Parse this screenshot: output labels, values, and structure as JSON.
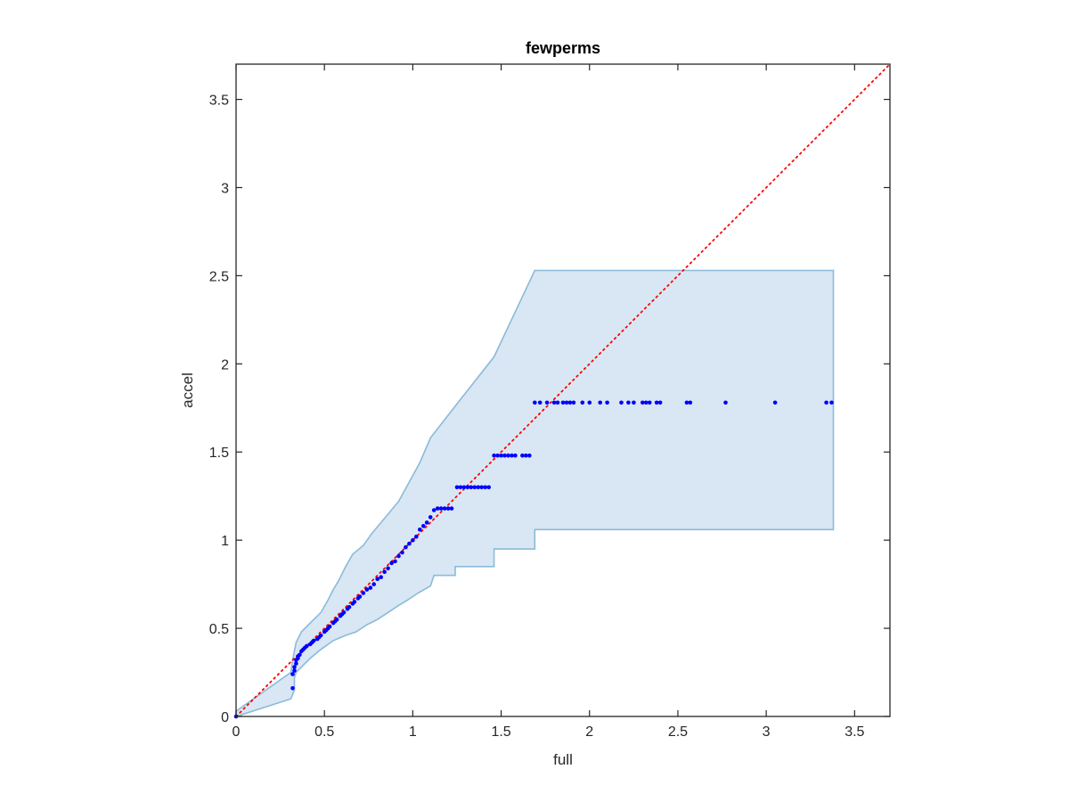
{
  "chart_data": {
    "type": "scatter",
    "title": "fewperms",
    "xlabel": "full",
    "ylabel": "accel",
    "xlim": [
      0,
      3.7
    ],
    "ylim": [
      0,
      3.7
    ],
    "xticks": [
      "0",
      "0.5",
      "1",
      "1.5",
      "2",
      "2.5",
      "3",
      "3.5"
    ],
    "yticks": [
      "0",
      "0.5",
      "1",
      "1.5",
      "2",
      "2.5",
      "3",
      "3.5"
    ],
    "tick_values": [
      0,
      0.5,
      1,
      1.5,
      2,
      2.5,
      3,
      3.5
    ],
    "grid": false,
    "legend": "none",
    "colors": {
      "points": "#0000ff",
      "band_fill": "#d8e7f3",
      "band_edge": "#8bbad9",
      "reference_line": "#ff0000",
      "axes": "#262626"
    },
    "reference_line": {
      "style": "dotted",
      "from": [
        0,
        0
      ],
      "to": [
        3.7,
        3.7
      ]
    },
    "band": {
      "upper": [
        [
          0,
          0.03
        ],
        [
          0.31,
          0.25
        ],
        [
          0.32,
          0.32
        ],
        [
          0.34,
          0.42
        ],
        [
          0.37,
          0.48
        ],
        [
          0.42,
          0.53
        ],
        [
          0.48,
          0.59
        ],
        [
          0.52,
          0.66
        ],
        [
          0.55,
          0.72
        ],
        [
          0.58,
          0.77
        ],
        [
          0.62,
          0.85
        ],
        [
          0.66,
          0.92
        ],
        [
          0.72,
          0.97
        ],
        [
          0.77,
          1.04
        ],
        [
          0.82,
          1.1
        ],
        [
          0.87,
          1.16
        ],
        [
          0.92,
          1.22
        ],
        [
          0.98,
          1.33
        ],
        [
          1.04,
          1.44
        ],
        [
          1.1,
          1.58
        ],
        [
          1.24,
          1.76
        ],
        [
          1.46,
          2.04
        ],
        [
          1.69,
          2.53
        ],
        [
          3.38,
          2.53
        ]
      ],
      "lower": [
        [
          3.38,
          1.06
        ],
        [
          1.69,
          1.06
        ],
        [
          1.69,
          0.95
        ],
        [
          1.46,
          0.95
        ],
        [
          1.46,
          0.85
        ],
        [
          1.24,
          0.85
        ],
        [
          1.24,
          0.8
        ],
        [
          1.12,
          0.8
        ],
        [
          1.1,
          0.74
        ],
        [
          1.03,
          0.7
        ],
        [
          0.97,
          0.66
        ],
        [
          0.92,
          0.63
        ],
        [
          0.86,
          0.59
        ],
        [
          0.8,
          0.55
        ],
        [
          0.74,
          0.52
        ],
        [
          0.68,
          0.48
        ],
        [
          0.62,
          0.46
        ],
        [
          0.55,
          0.43
        ],
        [
          0.48,
          0.38
        ],
        [
          0.42,
          0.33
        ],
        [
          0.38,
          0.29
        ],
        [
          0.34,
          0.25
        ],
        [
          0.33,
          0.22
        ],
        [
          0.33,
          0.15
        ],
        [
          0.31,
          0.1
        ],
        [
          0,
          0
        ]
      ]
    },
    "series": [
      {
        "x": [
          0,
          0.32,
          0.32,
          0.33,
          0.33,
          0.34,
          0.34,
          0.35,
          0.35,
          0.36,
          0.37,
          0.38,
          0.39,
          0.4,
          0.42,
          0.43,
          0.44,
          0.46,
          0.47,
          0.48,
          0.5,
          0.51,
          0.52,
          0.53,
          0.55,
          0.56,
          0.57,
          0.59,
          0.6,
          0.61,
          0.63,
          0.64,
          0.66,
          0.67,
          0.69,
          0.7,
          0.72,
          0.74,
          0.76,
          0.78,
          0.8,
          0.82,
          0.84,
          0.86,
          0.88,
          0.9,
          0.92,
          0.94,
          0.96,
          0.98,
          1.0,
          1.02,
          1.04,
          1.06,
          1.08,
          1.1,
          1.12,
          1.14,
          1.16,
          1.18,
          1.2,
          1.22,
          1.25,
          1.27,
          1.29,
          1.31,
          1.33,
          1.35,
          1.37,
          1.39,
          1.41,
          1.43,
          1.46,
          1.48,
          1.5,
          1.52,
          1.54,
          1.56,
          1.58,
          1.62,
          1.64,
          1.66,
          1.69,
          1.72,
          1.76,
          1.8,
          1.82,
          1.85,
          1.87,
          1.89,
          1.91,
          1.96,
          2.0,
          2.06,
          2.1,
          2.18,
          2.22,
          2.25,
          2.3,
          2.32,
          2.34,
          2.38,
          2.4,
          2.55,
          2.57,
          2.77,
          3.05,
          3.34,
          3.37
        ],
        "y": [
          0,
          0.16,
          0.24,
          0.26,
          0.28,
          0.3,
          0.32,
          0.33,
          0.34,
          0.35,
          0.37,
          0.38,
          0.39,
          0.4,
          0.41,
          0.42,
          0.43,
          0.44,
          0.45,
          0.46,
          0.48,
          0.49,
          0.5,
          0.51,
          0.53,
          0.54,
          0.55,
          0.57,
          0.58,
          0.59,
          0.61,
          0.62,
          0.64,
          0.65,
          0.67,
          0.68,
          0.7,
          0.72,
          0.73,
          0.75,
          0.78,
          0.79,
          0.82,
          0.84,
          0.87,
          0.88,
          0.91,
          0.93,
          0.96,
          0.98,
          1.0,
          1.02,
          1.06,
          1.08,
          1.1,
          1.13,
          1.17,
          1.18,
          1.18,
          1.18,
          1.18,
          1.18,
          1.3,
          1.3,
          1.3,
          1.3,
          1.3,
          1.3,
          1.3,
          1.3,
          1.3,
          1.3,
          1.48,
          1.48,
          1.48,
          1.48,
          1.48,
          1.48,
          1.48,
          1.48,
          1.48,
          1.48,
          1.78,
          1.78,
          1.78,
          1.78,
          1.78,
          1.78,
          1.78,
          1.78,
          1.78,
          1.78,
          1.78,
          1.78,
          1.78,
          1.78,
          1.78,
          1.78,
          1.78,
          1.78,
          1.78,
          1.78,
          1.78,
          1.78,
          1.78,
          1.78,
          1.78,
          1.78,
          1.78
        ]
      }
    ]
  }
}
